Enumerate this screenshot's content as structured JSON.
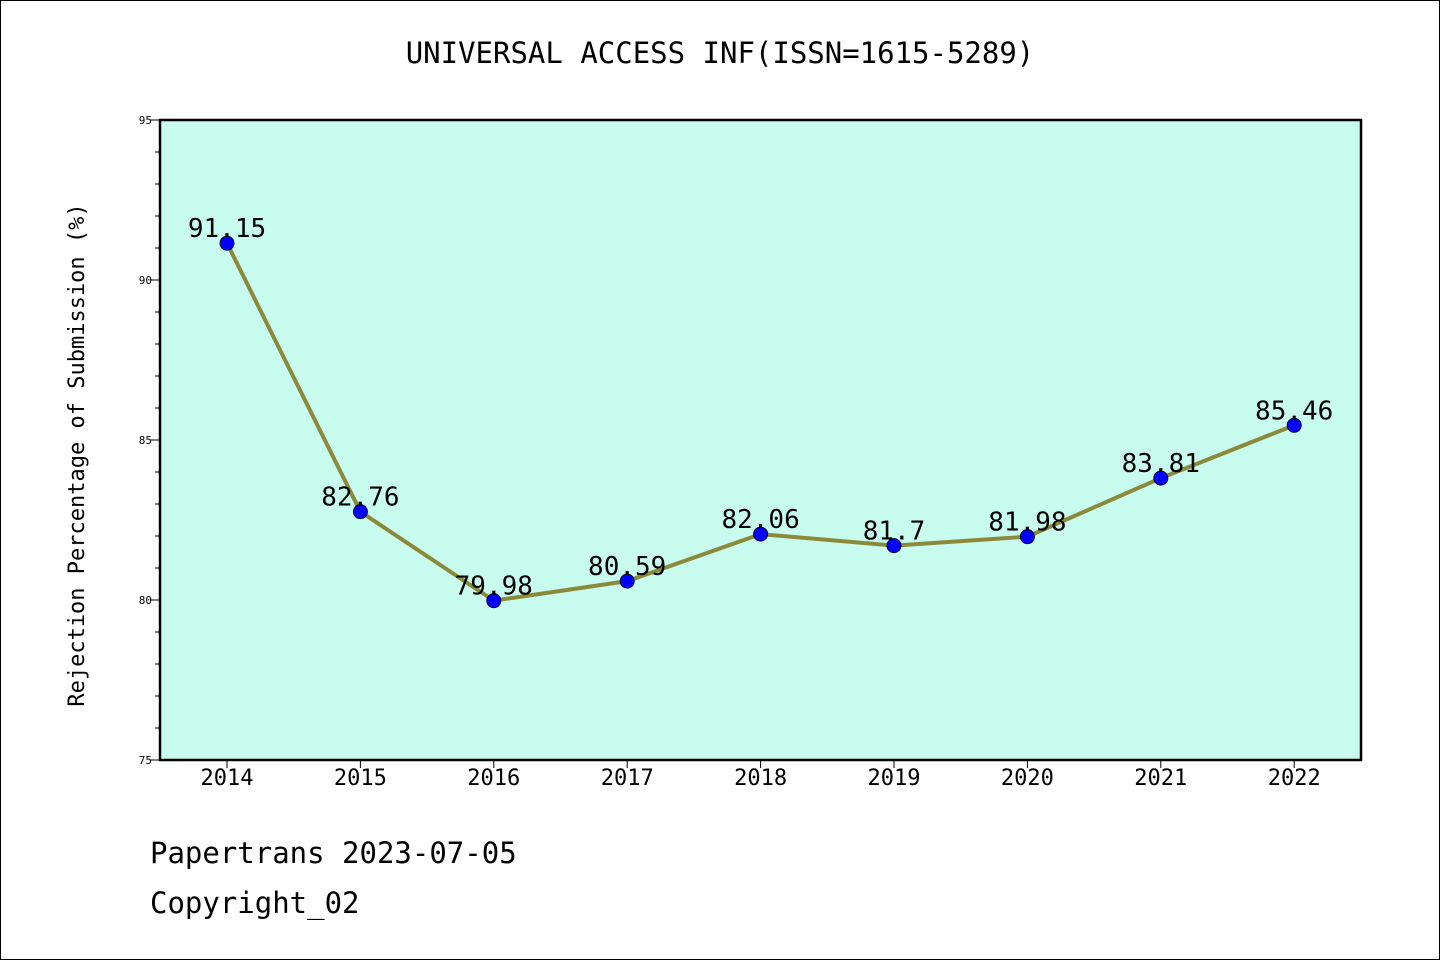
{
  "chart_data": {
    "type": "line",
    "title": "UNIVERSAL ACCESS INF(ISSN=1615-5289)",
    "xlabel": "",
    "ylabel": "Rejection Percentage of Submission (%)",
    "categories": [
      "2014",
      "2015",
      "2016",
      "2017",
      "2018",
      "2019",
      "2020",
      "2021",
      "2022"
    ],
    "series": [
      {
        "values": [
          91.15,
          82.76,
          79.98,
          80.59,
          82.06,
          81.7,
          81.98,
          83.81,
          85.46
        ],
        "labels": [
          "91.15",
          "82.76",
          "79.98",
          "80.59",
          "82.06",
          "81.7",
          "81.98",
          "83.81",
          "85.46"
        ]
      }
    ],
    "ylim": [
      75,
      95
    ],
    "yticks": [
      "75",
      "80",
      "85",
      "90",
      "95"
    ],
    "grid": false,
    "legend": "none",
    "colors": {
      "plot_background": "#c8fcee",
      "line": "#8b8a3a",
      "marker": "#0000ff"
    }
  },
  "footer": {
    "line1": "Papertrans 2023-07-05",
    "line2": "Copyright_02"
  }
}
